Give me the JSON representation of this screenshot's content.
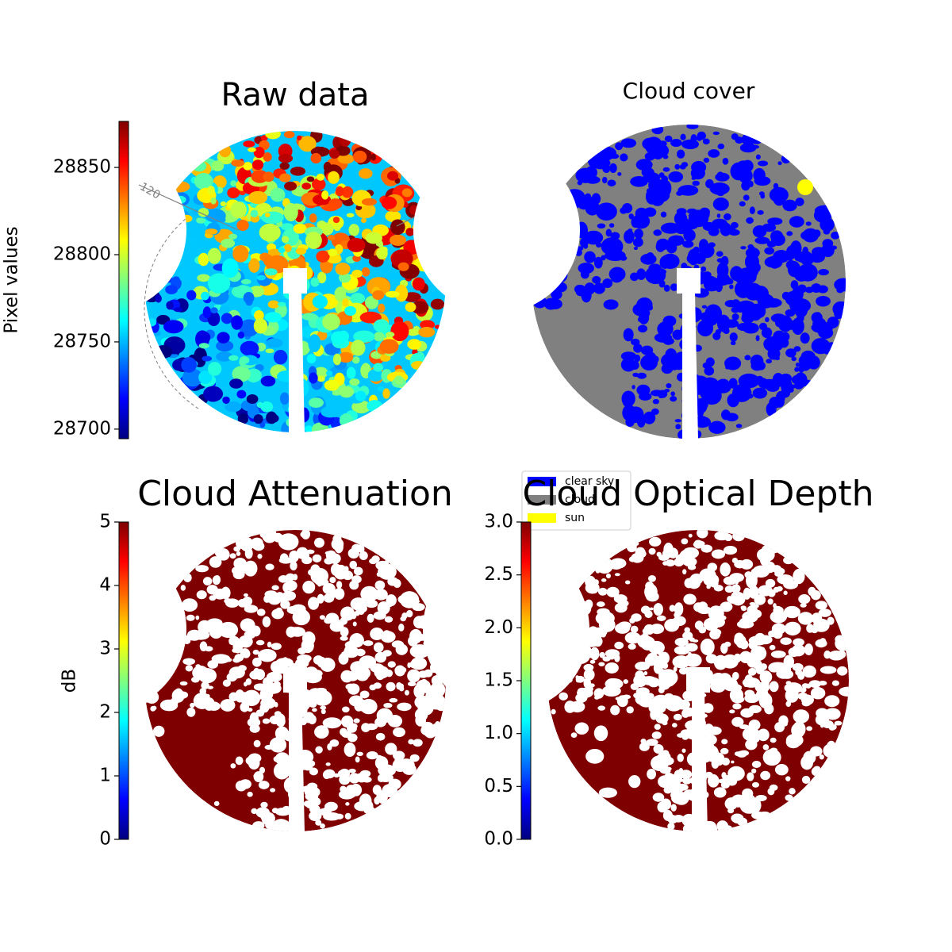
{
  "chart_data": [
    {
      "type": "heatmap",
      "title": "Raw data",
      "colorbar_label": "Pixel values",
      "colormap": "jet",
      "ylim": [
        28694.5,
        28876.4
      ],
      "yticks": [
        28700,
        28750,
        28800,
        28850
      ],
      "annotations": [
        "120"
      ]
    },
    {
      "type": "mask",
      "title": "Cloud cover",
      "series": [
        {
          "name": "clear sky",
          "color": "#0000ff"
        },
        {
          "name": "cloud",
          "color": "#808080"
        },
        {
          "name": "sun",
          "color": "#ffff00"
        }
      ]
    },
    {
      "type": "heatmap",
      "title": "Cloud Attenuation",
      "colorbar_label": "dB",
      "colormap": "jet",
      "ylim": [
        0,
        5
      ],
      "yticks": [
        0,
        1,
        2,
        3,
        4,
        5
      ]
    },
    {
      "type": "heatmap",
      "title": "Cloud Optical Depth",
      "colormap": "jet",
      "ylim": [
        0,
        3
      ],
      "yticks": [
        {
          "value": 0,
          "label": "0.0"
        },
        {
          "value": 0.5,
          "label": "0.5"
        },
        {
          "value": 1,
          "label": "1.0"
        },
        {
          "value": 1.5,
          "label": "1.5"
        },
        {
          "value": 2,
          "label": "2.0"
        },
        {
          "value": 2.5,
          "label": "2.5"
        },
        {
          "value": 3,
          "label": "3.0"
        }
      ]
    }
  ]
}
